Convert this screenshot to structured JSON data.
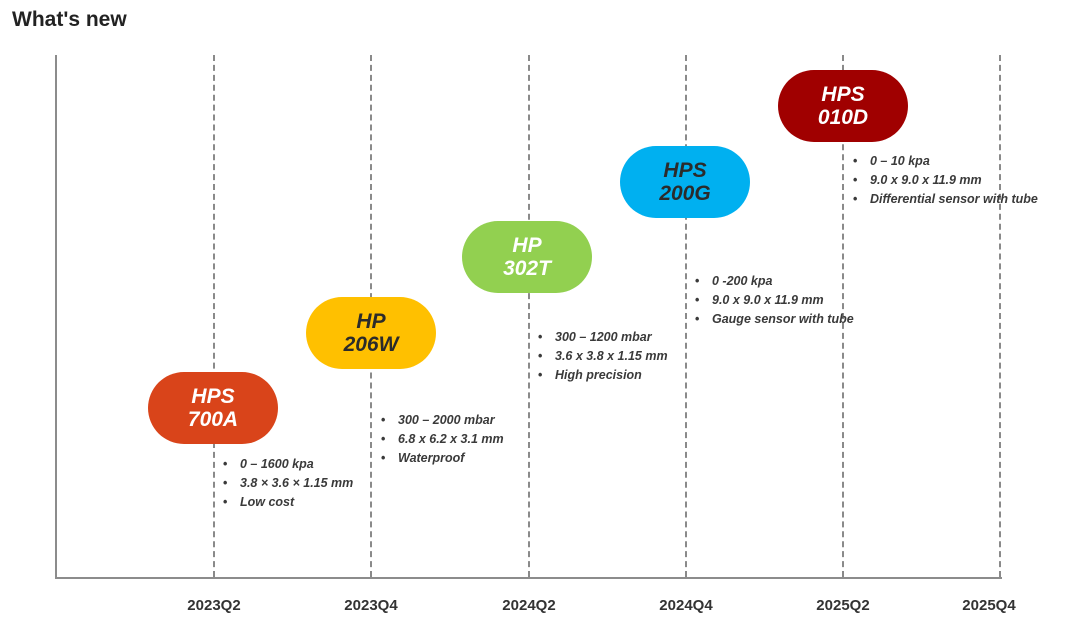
{
  "title": "What's new",
  "timeline": {
    "x_ticks": [
      "2023Q2",
      "2023Q4",
      "2024Q2",
      "2024Q4",
      "2025Q2",
      "2025Q4"
    ],
    "products": [
      {
        "line1": "HPS",
        "line2": "700A",
        "color": "#d9441a",
        "text_color": "#ffffff",
        "period": "2023Q2",
        "specs": [
          "0 – 1600 kpa",
          "3.8 × 3.6 × 1.15 mm",
          "Low cost"
        ]
      },
      {
        "line1": "HP",
        "line2": "206W",
        "color": "#ffc000",
        "text_color": "#2b2b2b",
        "period": "2023Q4",
        "specs": [
          "300 – 2000 mbar",
          "6.8 x 6.2 x 3.1 mm",
          "Waterproof"
        ]
      },
      {
        "line1": "HP",
        "line2": "302T",
        "color": "#92d050",
        "text_color": "#ffffff",
        "period": "2024Q2",
        "specs": [
          "300 – 1200 mbar",
          "3.6 x 3.8 x 1.15 mm",
          "High precision"
        ]
      },
      {
        "line1": "HPS",
        "line2": "200G",
        "color": "#00b0f0",
        "text_color": "#2b2b2b",
        "period": "2024Q4",
        "specs": [
          "0 -200 kpa",
          "9.0 x 9.0 x 11.9 mm",
          "Gauge sensor with tube"
        ]
      },
      {
        "line1": "HPS",
        "line2": "010D",
        "color": "#a00000",
        "text_color": "#ffffff",
        "period": "2025Q2",
        "specs": [
          "0 – 10 kpa",
          "9.0 x 9.0 x 11.9 mm",
          "Differential sensor with tube"
        ]
      }
    ]
  }
}
